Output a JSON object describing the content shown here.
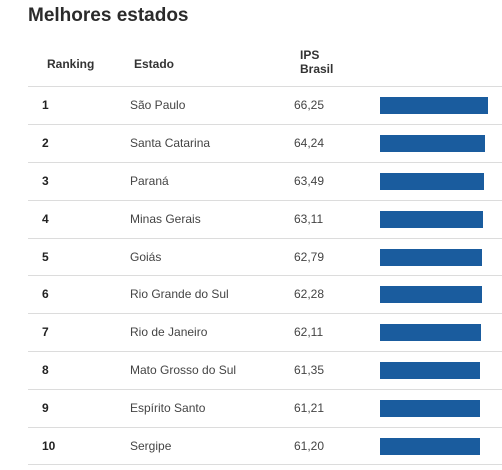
{
  "title": "Melhores estados",
  "headers": {
    "rank": "Ranking",
    "estado": "Estado",
    "ips_line1": "IPS",
    "ips_line2": "Brasil"
  },
  "chart_data": {
    "type": "bar",
    "title": "Melhores estados",
    "columns": [
      "Ranking",
      "Estado",
      "IPS Brasil"
    ],
    "rows": [
      {
        "rank": "1",
        "estado": "São Paulo",
        "ips": "66,25",
        "value": 66.25
      },
      {
        "rank": "2",
        "estado": "Santa Catarina",
        "ips": "64,24",
        "value": 64.24
      },
      {
        "rank": "3",
        "estado": "Paraná",
        "ips": "63,49",
        "value": 63.49
      },
      {
        "rank": "4",
        "estado": "Minas Gerais",
        "ips": "63,11",
        "value": 63.11
      },
      {
        "rank": "5",
        "estado": "Goiás",
        "ips": "62,79",
        "value": 62.79
      },
      {
        "rank": "6",
        "estado": "Rio Grande do Sul",
        "ips": "62,28",
        "value": 62.28
      },
      {
        "rank": "7",
        "estado": "Rio de Janeiro",
        "ips": "62,11",
        "value": 62.11
      },
      {
        "rank": "8",
        "estado": "Mato Grosso do Sul",
        "ips": "61,35",
        "value": 61.35
      },
      {
        "rank": "9",
        "estado": "Espírito Santo",
        "ips": "61,21",
        "value": 61.21
      },
      {
        "rank": "10",
        "estado": "Sergipe",
        "ips": "61,20",
        "value": 61.2
      }
    ],
    "bar_color": "#1a5c9e"
  }
}
